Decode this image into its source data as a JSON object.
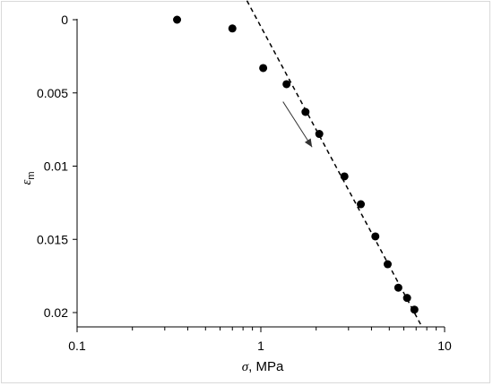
{
  "chart_data": {
    "type": "scatter",
    "xscale": "log",
    "xlim": [
      0.1,
      10
    ],
    "ylim": [
      0,
      0.021
    ],
    "y_inverted": true,
    "x_ticks": [
      {
        "value": 0.1,
        "label": "0.1"
      },
      {
        "value": 1,
        "label": "1"
      },
      {
        "value": 10,
        "label": "10"
      }
    ],
    "y_ticks": [
      {
        "value": 0,
        "label": "0"
      },
      {
        "value": 0.005,
        "label": "0.005"
      },
      {
        "value": 0.01,
        "label": "0.01"
      },
      {
        "value": 0.015,
        "label": "0.015"
      },
      {
        "value": 0.02,
        "label": "0.02"
      }
    ],
    "xlabel": {
      "symbol": "σ",
      "rest": ", MPa"
    },
    "ylabel": {
      "symbol": "ε",
      "subscript": "m"
    },
    "grid": false,
    "legend": "none",
    "points": [
      {
        "x": 0.35,
        "y": 0.0
      },
      {
        "x": 0.7,
        "y": 0.0006
      },
      {
        "x": 1.03,
        "y": 0.0033
      },
      {
        "x": 1.38,
        "y": 0.0044
      },
      {
        "x": 1.75,
        "y": 0.0063
      },
      {
        "x": 2.08,
        "y": 0.0078
      },
      {
        "x": 2.85,
        "y": 0.0107
      },
      {
        "x": 3.5,
        "y": 0.0126
      },
      {
        "x": 4.2,
        "y": 0.0148
      },
      {
        "x": 4.9,
        "y": 0.0167
      },
      {
        "x": 5.6,
        "y": 0.0183
      },
      {
        "x": 6.25,
        "y": 0.019
      },
      {
        "x": 6.85,
        "y": 0.0198
      }
    ],
    "trendline": {
      "style": "dashed",
      "from": {
        "x": 0.84,
        "y": -0.0013
      },
      "to": {
        "x": 7.55,
        "y": 0.021
      }
    },
    "arrow": {
      "from": {
        "x": 1.32,
        "y": 0.0056
      },
      "to": {
        "x": 1.9,
        "y": 0.0087
      }
    },
    "colors": {
      "marker": "#000000",
      "axis": "#000000",
      "frame": "#d9d9d9"
    }
  }
}
